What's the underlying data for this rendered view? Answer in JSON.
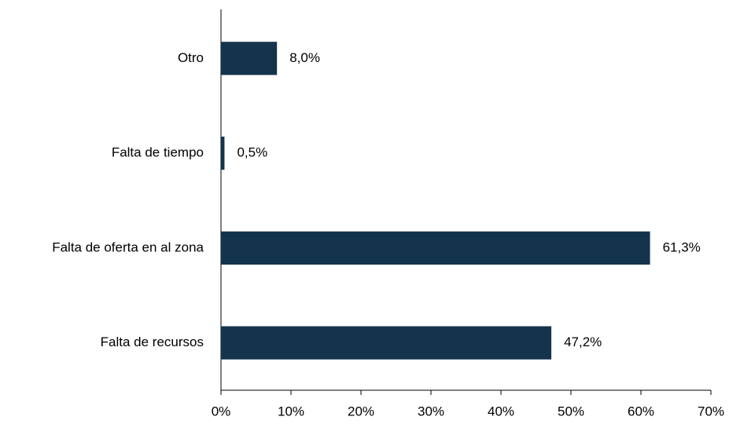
{
  "chart_data": {
    "type": "bar",
    "orientation": "horizontal",
    "categories": [
      "Otro",
      "Falta de tiempo",
      "Falta de oferta en al zona",
      "Falta de recursos"
    ],
    "values": [
      8.0,
      0.5,
      61.3,
      47.2
    ],
    "value_labels": [
      "8,0%",
      "0,5%",
      "61,3%",
      "47,2%"
    ],
    "color": "#14344b",
    "xlim": [
      0,
      70
    ],
    "xticks": [
      {
        "value": 0,
        "label": "0%"
      },
      {
        "value": 10,
        "label": "10%"
      },
      {
        "value": 20,
        "label": "20%"
      },
      {
        "value": 30,
        "label": "30%"
      },
      {
        "value": 40,
        "label": "40%"
      },
      {
        "value": 50,
        "label": "50%"
      },
      {
        "value": 60,
        "label": "60%"
      },
      {
        "value": 70,
        "label": "70%"
      }
    ],
    "grid": false
  }
}
